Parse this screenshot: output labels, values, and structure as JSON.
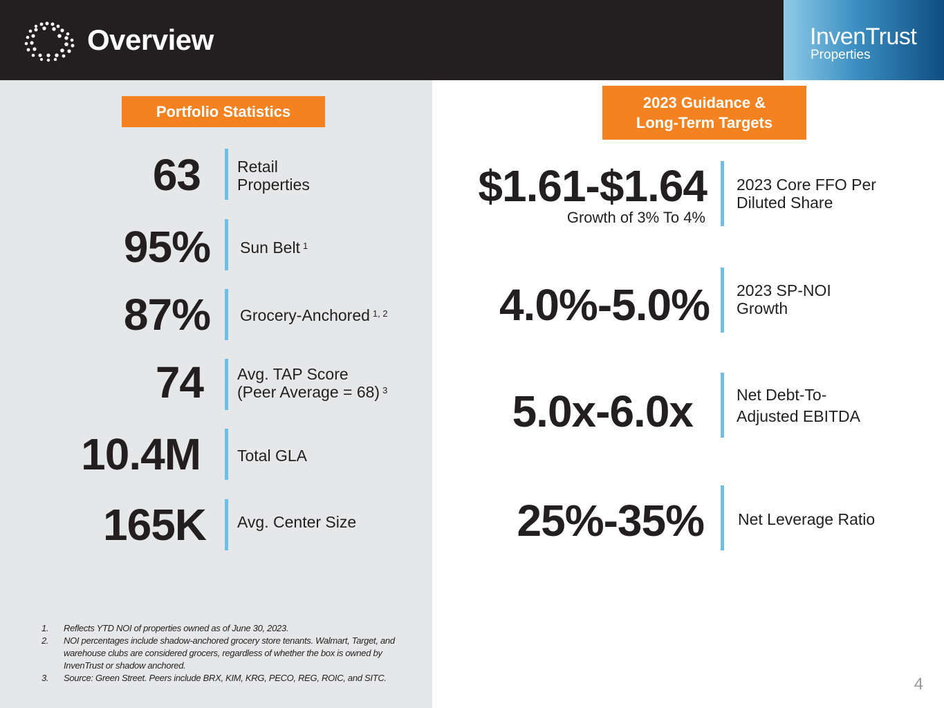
{
  "header": {
    "title": "Overview",
    "brand_name": "InvenTrust",
    "brand_sub": "Properties"
  },
  "portfolio": {
    "badge": "Portfolio Statistics",
    "stats": [
      {
        "value": "63",
        "label_line1": "Retail",
        "label_line2": "Properties",
        "note": ""
      },
      {
        "value": "95%",
        "label_line1": "Sun Belt",
        "label_line2": "",
        "note": "1"
      },
      {
        "value": "87%",
        "label_line1": "Grocery-Anchored",
        "label_line2": "",
        "note": "1, 2"
      },
      {
        "value": "74",
        "label_line1": "Avg. TAP Score",
        "label_line2": "(Peer Average = 68)",
        "note": "3"
      },
      {
        "value": "10.4M",
        "label_line1": "Total GLA",
        "label_line2": "",
        "note": ""
      },
      {
        "value": "165K",
        "label_line1": "Avg. Center Size",
        "label_line2": "",
        "note": ""
      }
    ]
  },
  "guidance": {
    "badge_line1": "2023 Guidance &",
    "badge_line2": "Long-Term Targets",
    "items": [
      {
        "value": "$1.61-$1.64",
        "sub": "Growth of 3% To 4%",
        "label_line1": "2023 Core FFO Per",
        "label_line2": "Diluted Share"
      },
      {
        "value": "4.0%-5.0%",
        "sub": "",
        "label_line1": "2023 SP-NOI",
        "label_line2": "Growth"
      },
      {
        "value": "5.0x-6.0x",
        "sub": "",
        "label_line1": "Net Debt-To-",
        "label_line2": "Adjusted EBITDA"
      },
      {
        "value": "25%-35%",
        "sub": "",
        "label_line1": "Net Leverage Ratio",
        "label_line2": ""
      }
    ]
  },
  "footnotes": [
    {
      "num": "1.",
      "text": "Reflects YTD NOI of properties owned as of June 30, 2023."
    },
    {
      "num": "2.",
      "text": "NOI percentages include shadow-anchored grocery store tenants. Walmart, Target, and warehouse clubs are considered grocers, regardless of whether the box is owned by InvenTrust or shadow anchored."
    },
    {
      "num": "3.",
      "text": "Source: Green Street.  Peers include BRX, KIM, KRG, PECO, REG, ROIC, and SITC."
    }
  ],
  "page_number": "4"
}
